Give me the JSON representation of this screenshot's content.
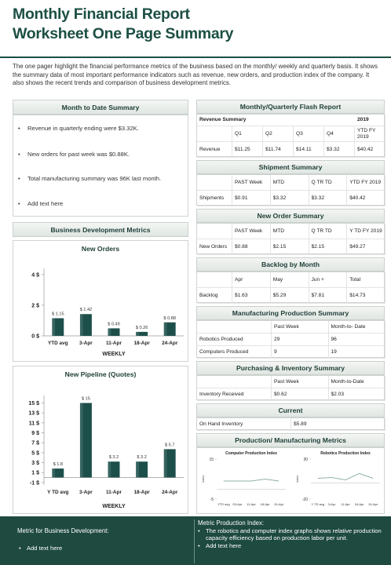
{
  "header": {
    "title_lines": [
      "Monthly Financial Report",
      "Worksheet One Page Summary"
    ]
  },
  "intro": "The one pager highlight the financial performance metrics of the business based on the monthly/ weekly and quarterly basis. It shows the summary data of most important performance indicators such as  revenue, new orders, and production index of the company. It also shows the recent trends and comparison of business development metrics.",
  "month_to_date": {
    "title": "Month to Date Summary",
    "items": [
      "Revenue in quarterly ending were $3.32K.",
      "New orders for past week was $0.88K.",
      "Total manufacturing summary was 96K last month.",
      "Add text here"
    ]
  },
  "business_development": {
    "title": "Business Development Metrics"
  },
  "new_orders": {
    "type": "bar",
    "title": "New Orders",
    "categories": [
      "YTD avg",
      "3-Apr",
      "11-Apr",
      "18-Apr",
      "24-Apr"
    ],
    "values": [
      1.15,
      1.42,
      0.49,
      0.26,
      0.88
    ],
    "value_labels": [
      "$ 1.15",
      "$ 1.42",
      "$ 0.49",
      "$ 0.26",
      "$ 0.88"
    ],
    "ylim": [
      0,
      4.4
    ],
    "yticks": [
      {
        "value": 0,
        "label": "0 $"
      },
      {
        "value": 2,
        "label": "2 $"
      },
      {
        "value": 4,
        "label": "4 $"
      }
    ],
    "x_label": "WEEKLY",
    "color": "#1d4f4a"
  },
  "new_pipeline": {
    "type": "bar",
    "title": "New Pipeline (Quotes)",
    "categories": [
      "Y TD avg",
      "3-Apr",
      "11-Apr",
      "18-Apr",
      "24-Apr"
    ],
    "values": [
      1.8,
      15,
      3.2,
      3.2,
      5.7
    ],
    "value_labels": [
      "$ 1.8",
      "$ 15",
      "$ 3.2",
      "$ 3.2",
      "$ 5.7"
    ],
    "ylim": [
      -1.5,
      16.5
    ],
    "yticks": [
      {
        "value": -1,
        "label": "-1 $"
      },
      {
        "value": 1,
        "label": "1 $"
      },
      {
        "value": 3,
        "label": "3 $"
      },
      {
        "value": 5,
        "label": "5 $"
      },
      {
        "value": 7,
        "label": "7 $"
      },
      {
        "value": 9,
        "label": "9 $"
      },
      {
        "value": 11,
        "label": "11 $"
      },
      {
        "value": 13,
        "label": "13 $"
      },
      {
        "value": 15,
        "label": "15 $"
      }
    ],
    "x_label": "WEEKLY",
    "color": "#1d4f4a"
  },
  "right_sections": [
    {
      "title": "Monthly/Quarterly Flash Report",
      "corner": "Revenue Summary",
      "year": "2019",
      "columns": [
        "Q1",
        "Q2",
        "Q3",
        "Q4",
        "YTD FY 2019"
      ],
      "rows": [
        [
          "Revenue",
          "$11.25",
          "$11.74",
          "$14.11",
          "$3.32",
          "$40.42"
        ]
      ]
    },
    {
      "title": "Shipment Summary",
      "columns": [
        "PAST Week",
        "MTD",
        "Q TR TD",
        "YTD FY 2019"
      ],
      "rows": [
        [
          "Shipments",
          "$0.91",
          "$3.32",
          "$3.32",
          "$40.42"
        ]
      ]
    },
    {
      "title": "New Order Summary",
      "columns": [
        "PAST Week",
        "MTD",
        "Q TR TD",
        "Y TD FY 2019"
      ],
      "rows": [
        [
          "New Orders",
          "$0.88",
          "$2.15",
          "$2.15",
          "$49.27"
        ]
      ]
    },
    {
      "title": "Backlog by Month",
      "columns": [
        "Apr",
        "May",
        "Jun +",
        "Total"
      ],
      "rows": [
        [
          "Backlog",
          "$1.63",
          "$5.29",
          "$7.81",
          "$14.73"
        ]
      ]
    },
    {
      "title": "Manufacturing Production Summary",
      "columns": [
        "Past Week",
        "Month-to- Date"
      ],
      "rows": [
        [
          "Robotics Produced",
          "29",
          "96"
        ],
        [
          "Computers Produced",
          "9",
          "19"
        ]
      ]
    },
    {
      "title": "Purchasing & Inventory Summary",
      "columns": [
        "Past Week",
        "Month-to-Date"
      ],
      "rows": [
        [
          "Inventory Received",
          "$0.62",
          "$2.03"
        ]
      ]
    },
    {
      "title": "Current",
      "rows": [
        [
          "On Hand Inventory",
          "$5.89"
        ]
      ]
    }
  ],
  "production_metrics": {
    "title": "Production/ Manufacturing Metrics",
    "charts": [
      {
        "type": "line",
        "title": "Computer Production Index",
        "y_label": "Index",
        "categories": [
          "YTD avg",
          "03-Apr",
          "11-Apr",
          "18-Apr",
          "24-Apr"
        ],
        "values": [
          4,
          4,
          4,
          5,
          4
        ],
        "ylim": [
          -5,
          15
        ],
        "yticks": [
          -5,
          15
        ],
        "color": "#8fb0a8"
      },
      {
        "type": "line",
        "title": "Robotics Production Index",
        "y_label": "Index",
        "categories": [
          "Y TD avg",
          "3-Apr",
          "11-Apr",
          "18-Apr",
          "24-Apr"
        ],
        "values": [
          6,
          7,
          4,
          12,
          6
        ],
        "ylim": [
          -20,
          30
        ],
        "yticks": [
          -20,
          30
        ],
        "color": "#8fb0a8"
      }
    ]
  },
  "footer": {
    "left": {
      "title": "Metric for Business Development:",
      "items": [
        "Add text here"
      ]
    },
    "right": {
      "title": "Metric Production Index:",
      "items": [
        "The robotics and computer index graphs shows relative production capacity efficiency based on production labor per unit.",
        "Add text here"
      ]
    }
  }
}
